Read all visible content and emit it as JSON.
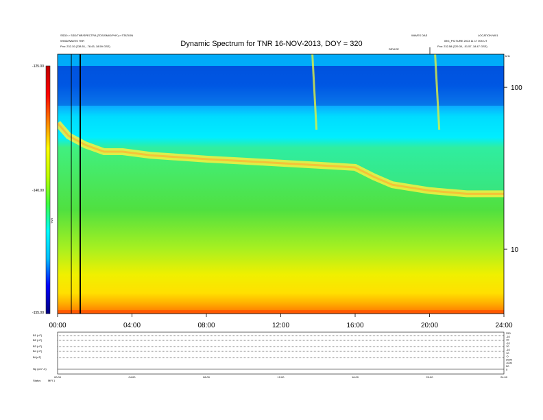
{
  "header": {
    "left_line1": "SSD0 > SSD/TNR/SPECTRA (TDS/SMIG/PHY) > STATION",
    "left_line2": "WIND/WAVES TNR",
    "left_line3_label": "Pos:",
    "left_line3_value": "232.10 (238.51, -78.43, 18.59 GSE)",
    "right_a": "WAVES DAS",
    "right_b": "LOCATION W01",
    "right_c": "IMG_PICTURE 2013 11 17 00h UT",
    "right_d": "Pos:",
    "right_e": "232.58 (229.30, -51.57, 18.47 GSE)",
    "small_mid": "DEVICE",
    "right_corner": "kHz"
  },
  "chart_data": {
    "type": "heatmap",
    "title": "Dynamic Spectrum for TNR 16-NOV-2013, DOY = 320",
    "xlabel": "",
    "ylabel": "",
    "x_ticks": [
      "00:00",
      "04:00",
      "08:00",
      "12:00",
      "16:00",
      "20:00",
      "24:00"
    ],
    "xlim_hours": [
      0,
      24
    ],
    "y_scale": "log",
    "ylim_khz": [
      4,
      160
    ],
    "y_ticks": [
      {
        "value": 100,
        "label": "100"
      },
      {
        "value": 10,
        "label": "10"
      }
    ],
    "colorbar": {
      "label": "TNR",
      "ticks": [
        "-125.00",
        "-140.00",
        "-155.00"
      ],
      "range": [
        -155,
        -125
      ],
      "colors": [
        "#000080",
        "#0000ff",
        "#00c0ff",
        "#00ffff",
        "#40ff40",
        "#c0ff00",
        "#ffff00",
        "#ff8000",
        "#ff0000",
        "#c00000"
      ]
    },
    "plasma_line_khz": [
      {
        "hour": 0.0,
        "khz": 60
      },
      {
        "hour": 0.6,
        "khz": 50
      },
      {
        "hour": 1.5,
        "khz": 44
      },
      {
        "hour": 2.5,
        "khz": 40
      },
      {
        "hour": 3.5,
        "khz": 40
      },
      {
        "hour": 5.0,
        "khz": 38
      },
      {
        "hour": 6.5,
        "khz": 37
      },
      {
        "hour": 8.0,
        "khz": 36
      },
      {
        "hour": 10.0,
        "khz": 35
      },
      {
        "hour": 12.0,
        "khz": 34
      },
      {
        "hour": 14.0,
        "khz": 33
      },
      {
        "hour": 16.0,
        "khz": 32
      },
      {
        "hour": 17.0,
        "khz": 28
      },
      {
        "hour": 18.0,
        "khz": 25
      },
      {
        "hour": 20.0,
        "khz": 23
      },
      {
        "hour": 22.0,
        "khz": 22
      },
      {
        "hour": 24.0,
        "khz": 22
      }
    ],
    "bursts_hours": [
      13.7,
      20.3
    ]
  },
  "panels": {
    "labels": [
      "B1 (nT)",
      "B2 (nT)",
      "B3 (nT)",
      "B4 (nT)",
      "Bt (nT)",
      "Np (cm^-3)"
    ],
    "right_labels": [
      "250",
      "-10",
      "10",
      "-10",
      "10",
      "-10",
      "10",
      "-5",
      "2000",
      "1000",
      "50",
      "0"
    ],
    "x_ticks": [
      "00:00",
      "04:00",
      "08:00",
      "12:00",
      "16:00",
      "20:00",
      "24:00"
    ],
    "footer_label": "Status",
    "footer_value": "MFI 1"
  }
}
